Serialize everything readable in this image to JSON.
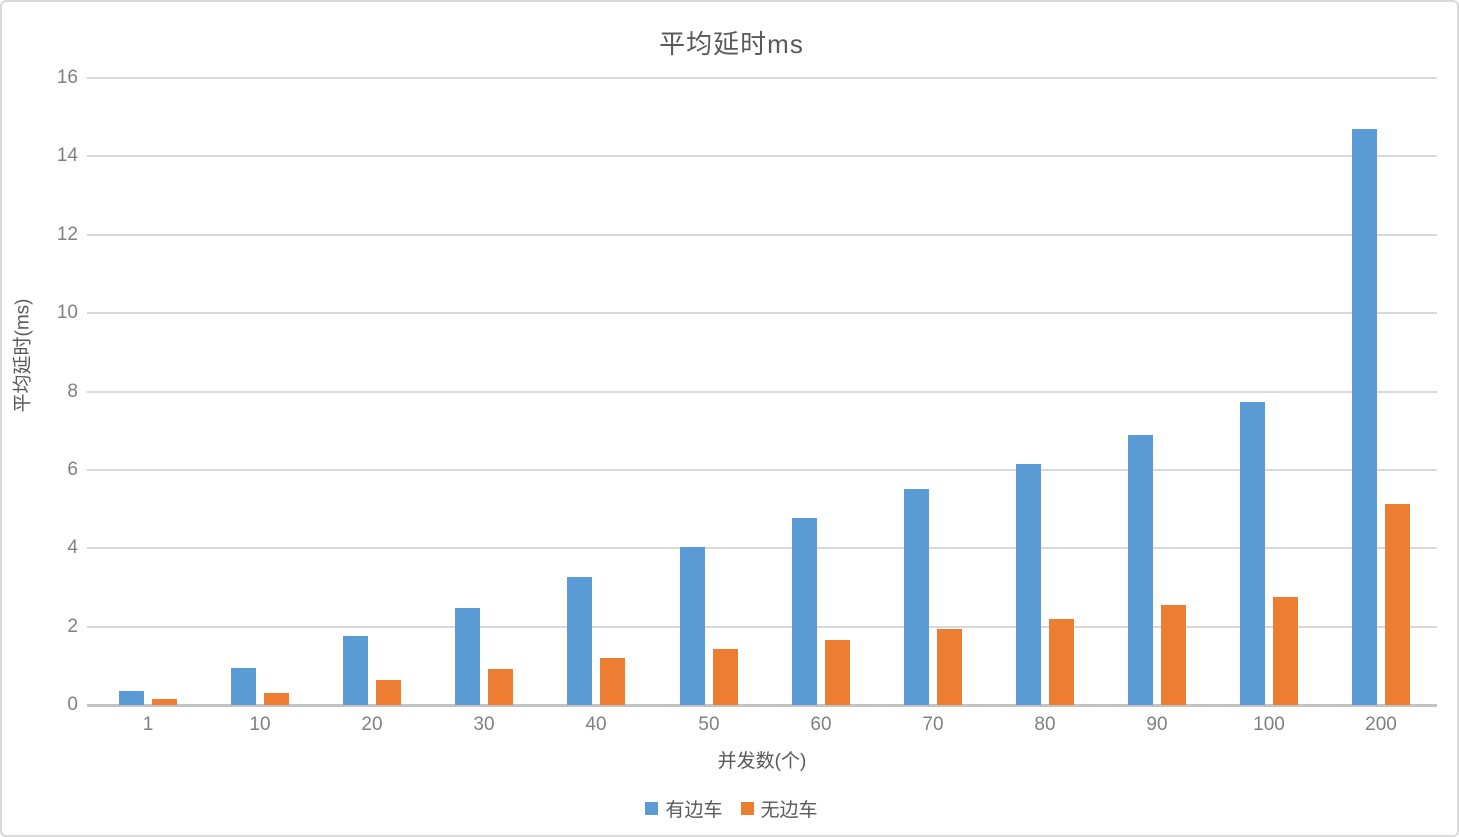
{
  "chart_data": {
    "type": "bar",
    "title": "平均延时ms",
    "xlabel": "并发数(个)",
    "ylabel": "平均延时(ms)",
    "categories": [
      "1",
      "10",
      "20",
      "30",
      "40",
      "50",
      "60",
      "70",
      "80",
      "90",
      "100",
      "200"
    ],
    "series": [
      {
        "name": "有边车",
        "color": "#5B9BD5",
        "values": [
          0.35,
          0.95,
          1.75,
          2.48,
          3.27,
          4.03,
          4.78,
          5.5,
          6.15,
          6.9,
          7.72,
          14.7
        ]
      },
      {
        "name": "无边车",
        "color": "#ED7D31",
        "values": [
          0.15,
          0.3,
          0.63,
          0.92,
          1.2,
          1.42,
          1.65,
          1.93,
          2.2,
          2.55,
          2.75,
          5.12
        ]
      }
    ],
    "ylim": [
      0,
      16
    ],
    "ytick_step": 2,
    "yticks": [
      "0",
      "2",
      "4",
      "6",
      "8",
      "10",
      "12",
      "14",
      "16"
    ],
    "grid": true,
    "legend_position": "bottom",
    "colors": {
      "gridline": "#d9d9d9",
      "baseline": "#c3c3c3",
      "tick_text": "#808080",
      "title_text": "#595959"
    }
  }
}
